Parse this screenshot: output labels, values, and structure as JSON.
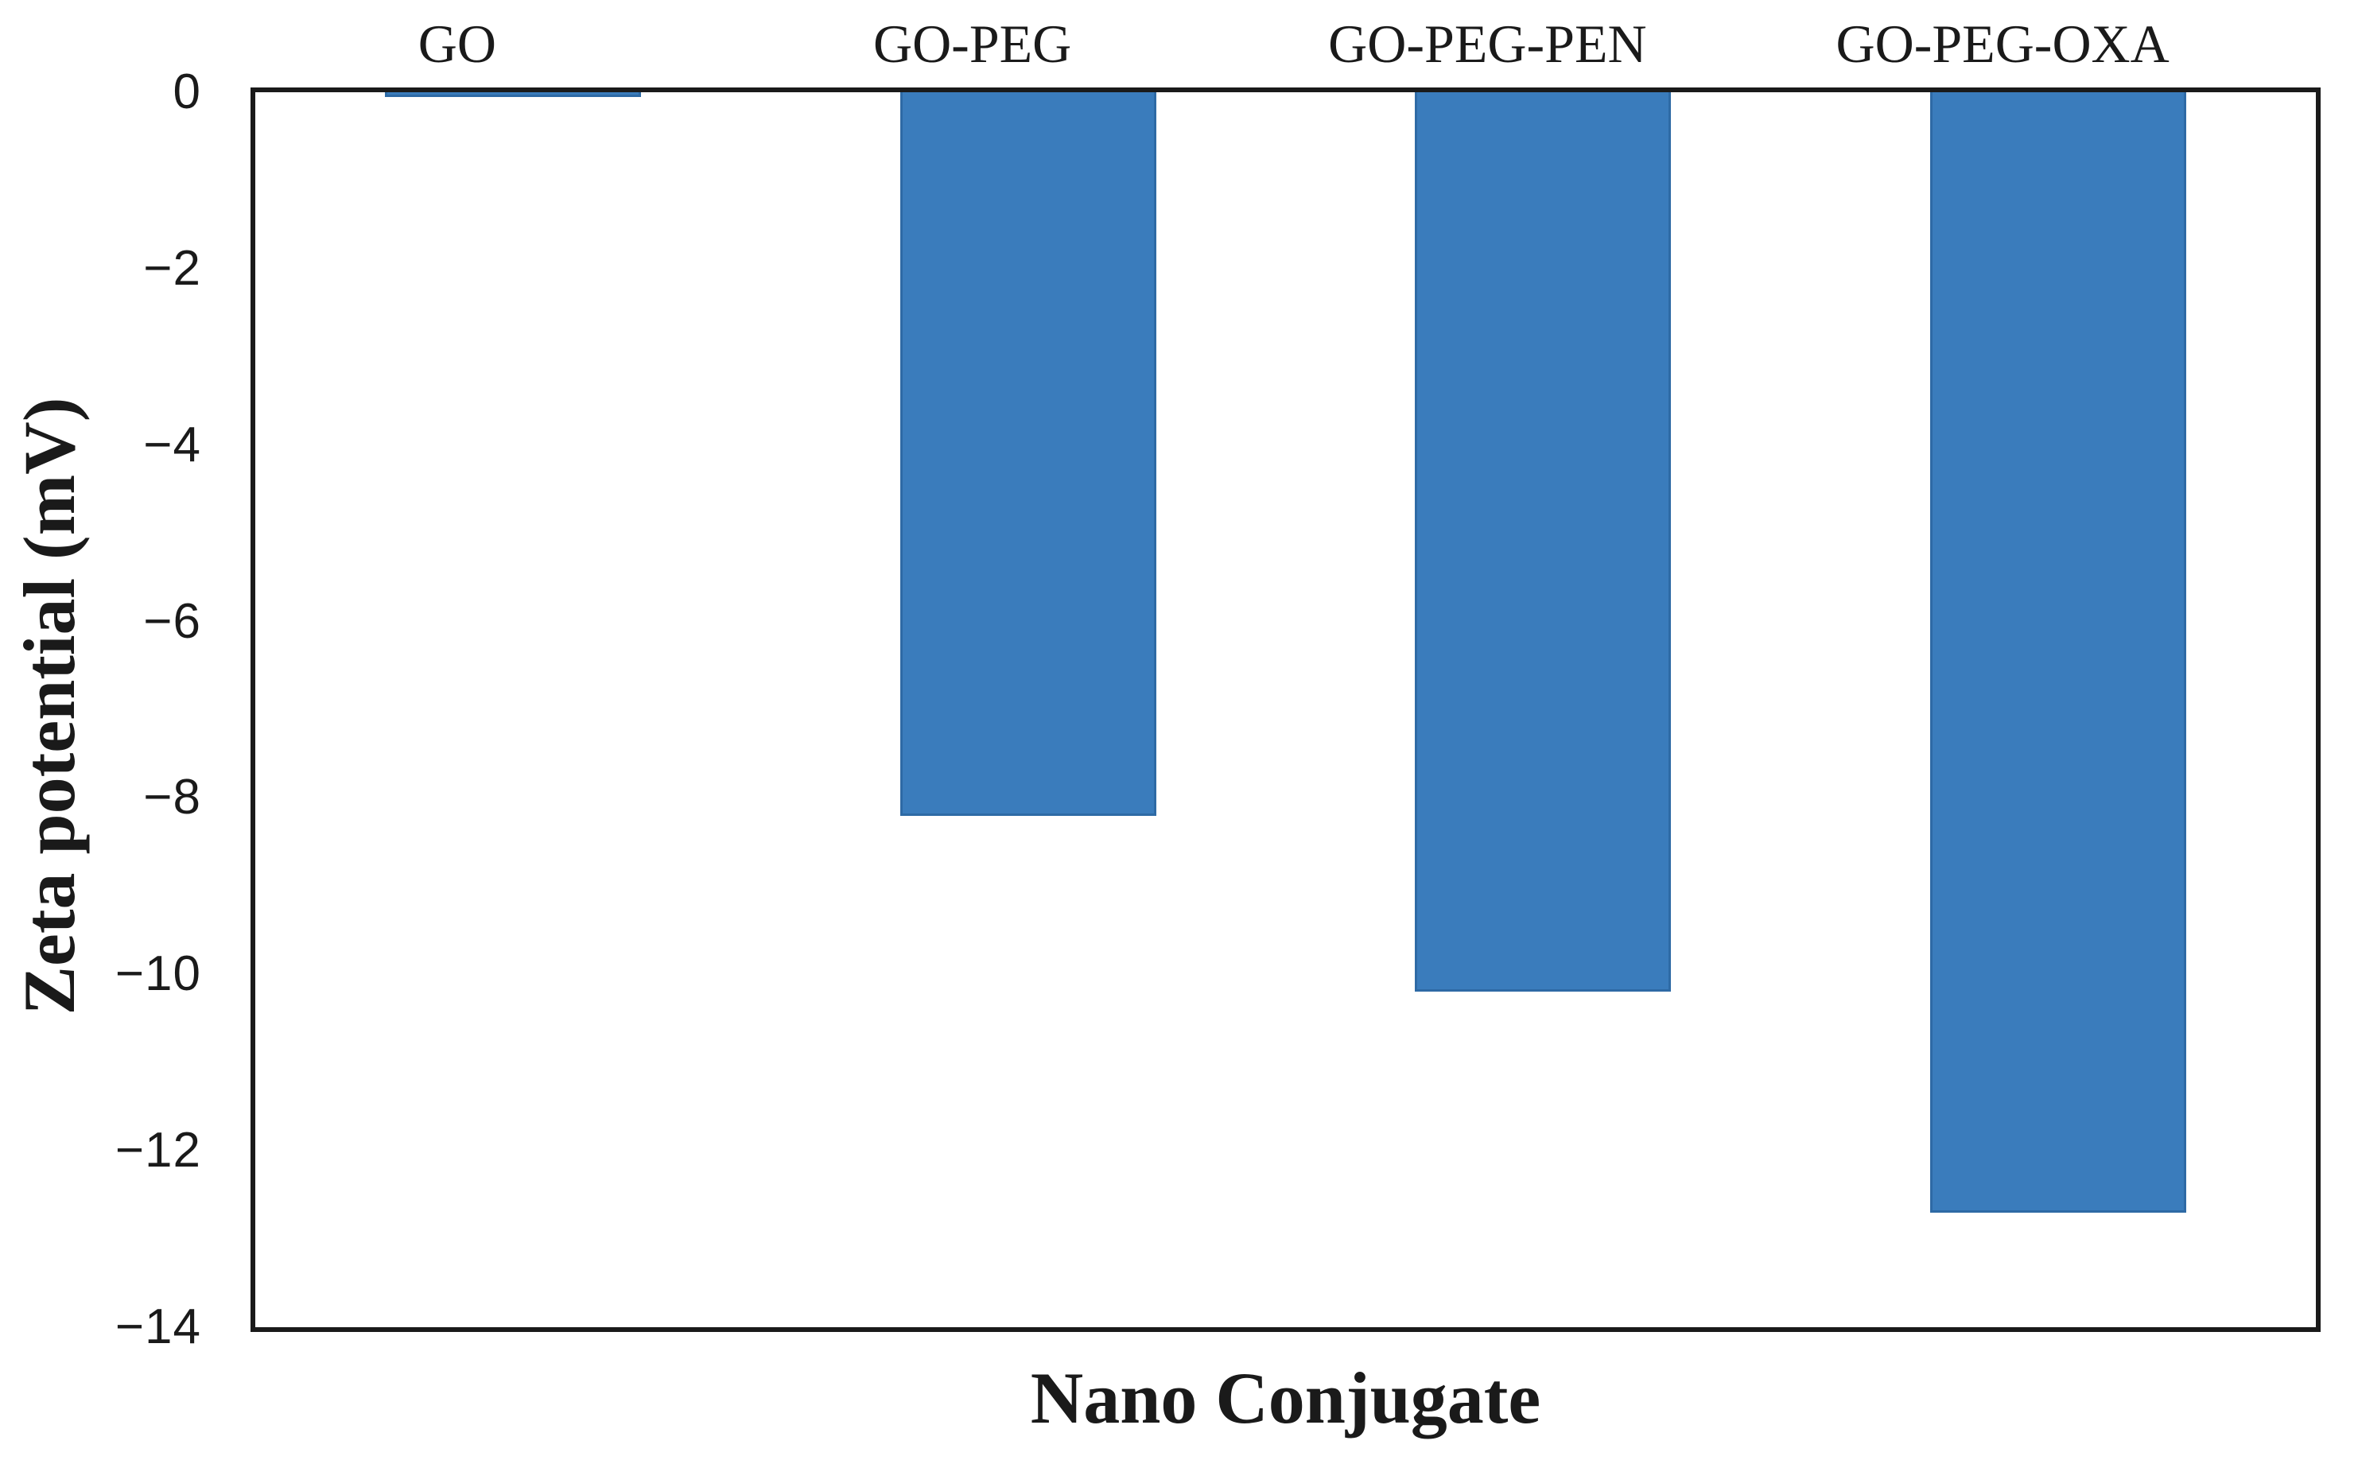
{
  "figure": {
    "background": "#ffffff",
    "text_color": "#1a1a1a"
  },
  "chart_data": {
    "type": "bar",
    "title": "",
    "categories": [
      "GO",
      "GO-PEG",
      "GO-PEG-PEN",
      "GO-PEG-OXA"
    ],
    "values": [
      -0.05,
      -8.2,
      -10.2,
      -12.7
    ],
    "xlabel": "Nano Conjugate",
    "ylabel": "Zeta potential (mV)",
    "ylim": [
      0,
      -14
    ],
    "yticks": [
      0,
      -2,
      -4,
      -6,
      -8,
      -10,
      -12,
      -14
    ],
    "grid": false,
    "legend_position": "none",
    "category_labels_position": "above top axis",
    "bar_color": "#3a7cbc",
    "bar_border_color": "#2e6aa5",
    "axis_color": "#1a1a1a",
    "minus_sign": "−"
  }
}
